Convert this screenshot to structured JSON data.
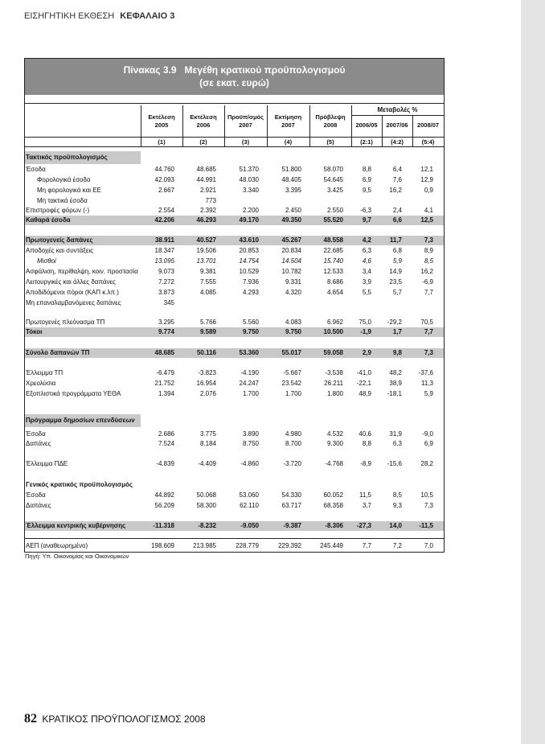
{
  "header": {
    "section": "ΕΙΣΗΓΗΤΙΚΗ ΕΚΘΕΣΗ",
    "chapter": "ΚΕΦΑΛΑΙΟ 3"
  },
  "table": {
    "title": "Πίνακας 3.9   Μεγέθη κρατικού προϋπολογισμού",
    "subtitle": "(σε εκατ. ευρώ)",
    "change_group": "Μεταβολές %",
    "columns": [
      {
        "label": "Εκτέλεση",
        "year": "2005",
        "index": "(1)"
      },
      {
        "label": "Εκτέλεση",
        "year": "2006",
        "index": "(2)"
      },
      {
        "label": "Προϋπ/σμός",
        "year": "2007",
        "index": "(3)"
      },
      {
        "label": "Εκτίμηση",
        "year": "2007",
        "index": "(4)"
      },
      {
        "label": "Πρόβλεψη",
        "year": "2008",
        "index": "(5)"
      },
      {
        "label": "2006/05",
        "index": "(2:1)"
      },
      {
        "label": "2007/06",
        "index": "(4:2)"
      },
      {
        "label": "2008/07",
        "index": "(5:4)"
      }
    ],
    "rows": [
      {
        "label": "Τακτικός προϋπολογισμός"
      },
      {
        "label": "Έσοδα",
        "values": [
          "44.760",
          "48.685",
          "51.370",
          "51.800",
          "58.070",
          "8,8",
          "6,4",
          "12,1"
        ]
      },
      {
        "label": "Φορολογικά έσοδα",
        "values": [
          "42.093",
          "44.991",
          "48.030",
          "48.405",
          "54.645",
          "6,9",
          "7,6",
          "12,9"
        ]
      },
      {
        "label": "Μη φορολογικά και ΕΕ",
        "values": [
          "2.667",
          "2.921",
          "3.340",
          "3.395",
          "3.425",
          "9,5",
          "16,2",
          "0,9"
        ]
      },
      {
        "label": "Μη τακτικά έσοδα",
        "values": [
          null,
          "773",
          null,
          null,
          null,
          null,
          null,
          null
        ]
      },
      {
        "label": "Επιστροφές φόρων (-)",
        "values": [
          "2.554",
          "2.392",
          "2.200",
          "2.450",
          "2.550",
          "-6,3",
          "2,4",
          "4,1"
        ]
      },
      {
        "label": "Καθαρά έσοδα",
        "values": [
          "42.206",
          "46.293",
          "49.170",
          "49.350",
          "55.520",
          "9,7",
          "6,6",
          "12,5"
        ]
      },
      {
        "label": "Πρωτογενείς δαπάνες",
        "values": [
          "38.911",
          "40.527",
          "43.610",
          "45.267",
          "48.558",
          "4,2",
          "11,7",
          "7,3"
        ]
      },
      {
        "label": "Αποδοχές και συντάξεις",
        "values": [
          "18.347",
          "19.506",
          "20.853",
          "20.834",
          "22.685",
          "6,3",
          "6,8",
          "8,9"
        ]
      },
      {
        "label": "Μισθοί",
        "values": [
          "13.095",
          "13.701",
          "14.754",
          "14.504",
          "15.740",
          "4,6",
          "5,9",
          "8,5"
        ]
      },
      {
        "label": "Ασφάλιση, περίθαλψη, κοιν. προστασία",
        "values": [
          "9.073",
          "9.381",
          "10.529",
          "10.782",
          "12.533",
          "3,4",
          "14,9",
          "16,2"
        ]
      },
      {
        "label": "Λειτουργικές και άλλες δαπάνες",
        "values": [
          "7.272",
          "7.555",
          "7.936",
          "9.331",
          "8.686",
          "3,9",
          "23,5",
          "-6,9"
        ]
      },
      {
        "label": "Αποδιδόμενοι πόροι (ΚΑΠ κ.λπ.)",
        "values": [
          "3.873",
          "4.085",
          "4.293",
          "4.320",
          "4.654",
          "5,5",
          "5,7",
          "7,7"
        ]
      },
      {
        "label": "Μη επαναλαμβανόμενες δαπάνες",
        "values": [
          "345",
          null,
          null,
          null,
          null,
          null,
          null,
          null
        ]
      },
      {
        "label": "Πρωτογενές πλεόνασμα ΤΠ",
        "values": [
          "3.295",
          "5.766",
          "5.560",
          "4.083",
          "6.962",
          "75,0",
          "-29,2",
          "70,5"
        ]
      },
      {
        "label": "Τόκοι",
        "values": [
          "9.774",
          "9.589",
          "9.750",
          "9.750",
          "10.500",
          "-1,9",
          "1,7",
          "7,7"
        ]
      },
      {
        "label": "Σύνολο δαπανών ΤΠ",
        "values": [
          "48.685",
          "50.116",
          "53.360",
          "55.017",
          "59.058",
          "2,9",
          "9,8",
          "7,3"
        ]
      },
      {
        "label": "Έλλειμμα ΤΠ",
        "values": [
          "-6.479",
          "-3.823",
          "-4.190",
          "-5.667",
          "-3.538",
          "-41,0",
          "48,2",
          "-37,6"
        ]
      },
      {
        "label": "Χρεολύσια",
        "values": [
          "21.752",
          "16.954",
          "24.247",
          "23.542",
          "26.211",
          "-22,1",
          "38,9",
          "11,3"
        ]
      },
      {
        "label": "Εξοπλιστικά προγράμματα ΥΕΘΑ",
        "values": [
          "1.394",
          "2.076",
          "1.700",
          "1.700",
          "1.800",
          "48,9",
          "-18,1",
          "5,9"
        ]
      },
      {
        "label": "Πρόγραμμα δημοσίων επενδύσεων"
      },
      {
        "label": "Έσοδα",
        "values": [
          "2.686",
          "3.775",
          "3.890",
          "4.980",
          "4.532",
          "40,6",
          "31,9",
          "-9,0"
        ]
      },
      {
        "label": "Δαπάνες",
        "values": [
          "7.524",
          "8.184",
          "8.750",
          "8.700",
          "9.300",
          "8,8",
          "6,3",
          "6,9"
        ]
      },
      {
        "label": "Έλλειμμα ΠΔΕ",
        "values": [
          "-4.839",
          "-4.409",
          "-4.860",
          "-3.720",
          "-4.768",
          "-8,9",
          "-15,6",
          "28,2"
        ]
      },
      {
        "label": "Γενικός κρατικός προϋπολογισμός"
      },
      {
        "label": "Έσοδα",
        "values": [
          "44.892",
          "50.068",
          "53.060",
          "54.330",
          "60.052",
          "11,5",
          "8,5",
          "10,5"
        ]
      },
      {
        "label": "Δαπάνες",
        "values": [
          "56.209",
          "58.300",
          "62.110",
          "63.717",
          "68.358",
          "3,7",
          "9,3",
          "7,3"
        ]
      },
      {
        "label": "Έλλειμμα κεντρικής κυβέρνησης",
        "values": [
          "-11.318",
          "-8.232",
          "-9.050",
          "-9.387",
          "-8.306",
          "-27,3",
          "14,0",
          "-11,5"
        ]
      },
      {
        "label": "ΑΕΠ (αναθεωρημένο)",
        "values": [
          "198.609",
          "213.985",
          "228.779",
          "229.392",
          "245.449",
          "7,7",
          "7,2",
          "7,0"
        ]
      }
    ],
    "source": "Πηγή: Υπ. Οικονομίας και Οικονομικών"
  },
  "footer": {
    "page": "82",
    "title": "ΚΡΑΤΙΚΟΣ ΠΡΟΫΠΟΛΟΓΙΣΜΟΣ 2008"
  }
}
